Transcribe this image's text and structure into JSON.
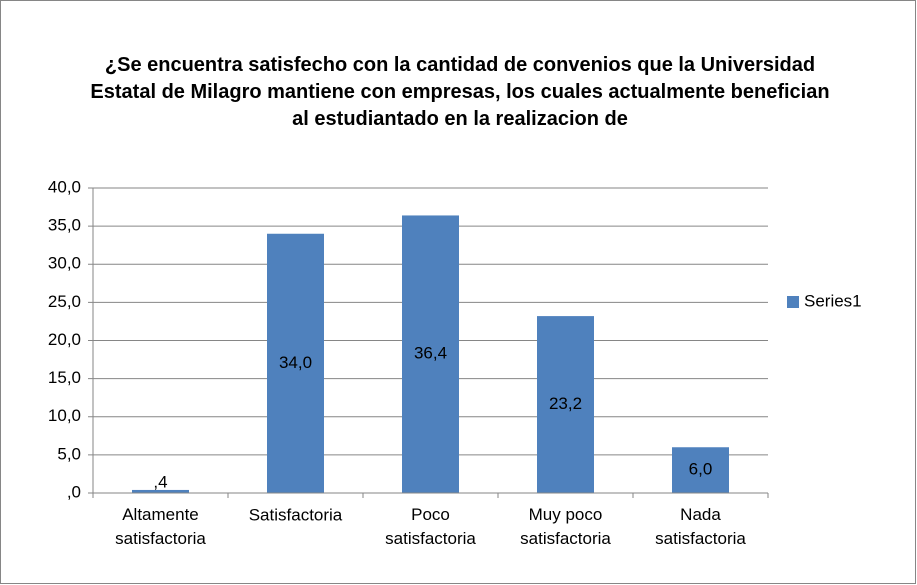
{
  "chart_data": {
    "type": "bar",
    "title": "¿Se encuentra satisfecho con la cantidad de convenios que la Universidad Estatal de Milagro mantiene con empresas, los cuales actualmente benefician al estudiantado en la realizacion de",
    "categories": [
      "Altamente satisfactoria",
      "Satisfactoria",
      "Poco satisfactoria",
      "Muy poco satisfactoria",
      "Nada satisfactoria"
    ],
    "series": [
      {
        "name": "Series1",
        "color": "#4f81bd",
        "values": [
          0.4,
          34.0,
          36.4,
          23.2,
          6.0
        ],
        "value_labels": [
          ",4",
          "34,0",
          "36,4",
          "23,2",
          "6,0"
        ]
      }
    ],
    "ylim": [
      0,
      40
    ],
    "yticks": [
      {
        "value": 0,
        "label": ",0"
      },
      {
        "value": 5,
        "label": "5,0"
      },
      {
        "value": 10,
        "label": "10,0"
      },
      {
        "value": 15,
        "label": "15,0"
      },
      {
        "value": 20,
        "label": "20,0"
      },
      {
        "value": 25,
        "label": "25,0"
      },
      {
        "value": 30,
        "label": "30,0"
      },
      {
        "value": 35,
        "label": "35,0"
      },
      {
        "value": 40,
        "label": "40,0"
      }
    ],
    "grid": true,
    "legend": "right"
  }
}
